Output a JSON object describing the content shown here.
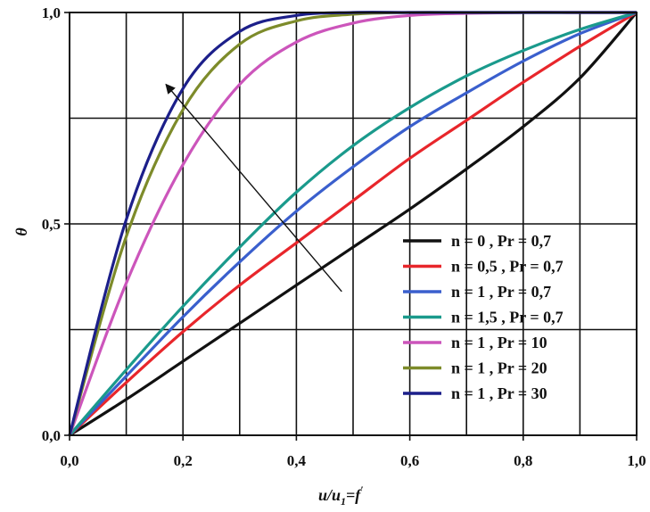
{
  "chart_data": {
    "type": "line",
    "xlabel": {
      "main": "u/u",
      "sub": "1",
      "tail": "=f",
      "prime": "′"
    },
    "ylabel": "θ",
    "xlim": [
      0,
      1
    ],
    "ylim": [
      0,
      1
    ],
    "x_ticks": [
      "0,0",
      "0,2",
      "0,4",
      "0,6",
      "0,8",
      "1,0"
    ],
    "y_ticks": [
      "0,0",
      "0,5",
      "1,0"
    ],
    "grid": true,
    "legend_position": "lower-right",
    "x": [
      0,
      0.1,
      0.2,
      0.3,
      0.4,
      0.5,
      0.6,
      0.7,
      0.8,
      0.9,
      1.0
    ],
    "series": [
      {
        "name": "n = 0 , Pr = 0,7",
        "color": "#111111",
        "values": [
          0,
          0.085,
          0.175,
          0.265,
          0.355,
          0.445,
          0.535,
          0.63,
          0.73,
          0.845,
          1.0
        ]
      },
      {
        "name": "n = 0,5 , Pr = 0,7",
        "color": "#e8262b",
        "values": [
          0,
          0.125,
          0.245,
          0.355,
          0.455,
          0.555,
          0.655,
          0.745,
          0.835,
          0.92,
          1.0
        ]
      },
      {
        "name": "n = 1 , Pr = 0,7",
        "color": "#3a5fcd",
        "values": [
          0,
          0.14,
          0.28,
          0.41,
          0.53,
          0.635,
          0.73,
          0.81,
          0.885,
          0.95,
          1.0
        ]
      },
      {
        "name": "n = 1,5 , Pr = 0,7",
        "color": "#1a9a8c",
        "values": [
          0,
          0.155,
          0.305,
          0.445,
          0.575,
          0.685,
          0.775,
          0.85,
          0.91,
          0.96,
          1.0
        ]
      },
      {
        "name": "n = 1 , Pr = 10",
        "color": "#cc55bb",
        "values": [
          0,
          0.36,
          0.64,
          0.83,
          0.93,
          0.975,
          0.993,
          0.998,
          1.0,
          1.0,
          1.0
        ]
      },
      {
        "name": "n = 1 , Pr = 20",
        "color": "#7d8b2a",
        "values": [
          0,
          0.47,
          0.77,
          0.925,
          0.98,
          0.996,
          1.0,
          1.0,
          1.0,
          1.0,
          1.0
        ]
      },
      {
        "name": "n = 1 , Pr = 30",
        "color": "#1c1f8a",
        "values": [
          0,
          0.51,
          0.82,
          0.955,
          0.993,
          1.0,
          1.0,
          1.0,
          1.0,
          1.0,
          1.0
        ]
      }
    ],
    "annotations": [
      {
        "type": "arrow",
        "from": [
          0.48,
          0.34
        ],
        "to": [
          0.17,
          0.83
        ]
      }
    ]
  }
}
